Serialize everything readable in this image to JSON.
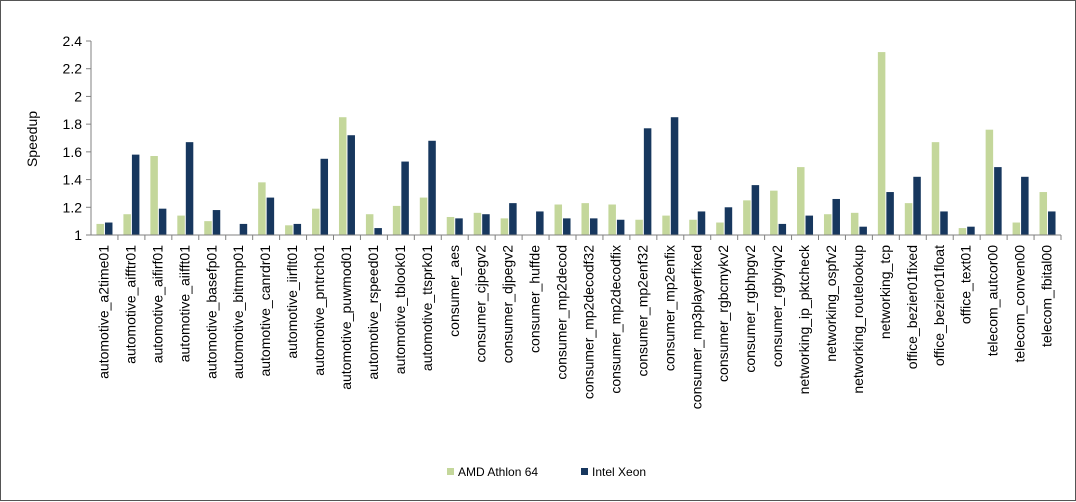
{
  "chart_data": {
    "type": "bar",
    "ylabel": "Speedup",
    "ylim": [
      1,
      2.4
    ],
    "yticks": [
      "1",
      "1.2",
      "1.4",
      "1.6",
      "1.8",
      "2",
      "2.2",
      "2.4"
    ],
    "grid": false,
    "legend_position": "bottom-center",
    "categories": [
      "automotive_a2time01",
      "automotive_aifftr01",
      "automotive_aifirf01",
      "automotive_aiifft01",
      "automotive_basefp01",
      "automotive_bitmnp01",
      "automotive_canrdr01",
      "automotive_iirflt01",
      "automotive_pntrch01",
      "automotive_puwmod01",
      "automotive_rspeed01",
      "automotive_tblook01",
      "automotive_ttsprk01",
      "consumer_aes",
      "consumer_cjpegv2",
      "consumer_djpegv2",
      "consumer_huffde",
      "consumer_mp2decod",
      "consumer_mp2decodf32",
      "consumer_mp2decodfix",
      "consumer_mp2enf32",
      "consumer_mp2enfix",
      "consumer_mp3playerfixed",
      "consumer_rgbcmykv2",
      "consumer_rgbhpgv2",
      "consumer_rgbyiqv2",
      "networking_ip_pktcheck",
      "networking_ospfv2",
      "networking_routelookup",
      "networking_tcp",
      "office_bezier01fixed",
      "office_bezier01float",
      "office_text01",
      "telecom_autcor00",
      "telecom_conven00",
      "telecom_fbital00"
    ],
    "series": [
      {
        "name": "AMD Athlon 64",
        "color": "#c4d79b",
        "values": [
          1.08,
          1.15,
          1.57,
          1.14,
          1.1,
          1.0,
          1.38,
          1.07,
          1.19,
          1.85,
          1.15,
          1.21,
          1.27,
          1.13,
          1.16,
          1.12,
          1.0,
          1.22,
          1.23,
          1.22,
          1.11,
          1.14,
          1.11,
          1.09,
          1.25,
          1.32,
          1.49,
          1.15,
          1.16,
          2.32,
          1.23,
          1.67,
          1.05,
          1.76,
          1.09,
          1.31
        ]
      },
      {
        "name": "Intel Xeon",
        "color": "#17375e",
        "values": [
          1.09,
          1.58,
          1.19,
          1.67,
          1.18,
          1.08,
          1.27,
          1.08,
          1.55,
          1.72,
          1.05,
          1.53,
          1.68,
          1.12,
          1.15,
          1.23,
          1.17,
          1.12,
          1.12,
          1.11,
          1.77,
          1.85,
          1.17,
          1.2,
          1.36,
          1.08,
          1.14,
          1.26,
          1.06,
          1.31,
          1.42,
          1.17,
          1.06,
          1.49,
          1.42,
          1.17
        ]
      }
    ]
  }
}
